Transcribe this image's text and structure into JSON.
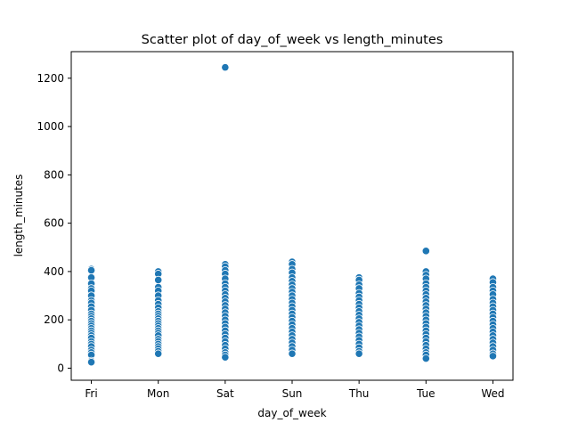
{
  "chart_data": {
    "type": "scatter",
    "title": "Scatter plot of day_of_week vs length_minutes",
    "xlabel": "day_of_week",
    "ylabel": "length_minutes",
    "categories": [
      "Fri",
      "Mon",
      "Sat",
      "Sun",
      "Thu",
      "Tue",
      "Wed"
    ],
    "ylim": [
      -50,
      1310
    ],
    "yticks": [
      0,
      200,
      400,
      600,
      800,
      1000,
      1200
    ],
    "grid": false,
    "legend": "none",
    "marker_color": "#1f77b4",
    "marker_edge_color": "#ffffff",
    "series": [
      {
        "values": [
          {
            "x": "Fri",
            "y": 410
          },
          {
            "x": "Fri",
            "y": 405
          },
          {
            "x": "Fri",
            "y": 375
          },
          {
            "x": "Fri",
            "y": 350
          },
          {
            "x": "Fri",
            "y": 330
          },
          {
            "x": "Fri",
            "y": 320
          },
          {
            "x": "Fri",
            "y": 300
          },
          {
            "x": "Fri",
            "y": 280
          },
          {
            "x": "Fri",
            "y": 270
          },
          {
            "x": "Fri",
            "y": 255
          },
          {
            "x": "Fri",
            "y": 240
          },
          {
            "x": "Fri",
            "y": 225
          },
          {
            "x": "Fri",
            "y": 215
          },
          {
            "x": "Fri",
            "y": 205
          },
          {
            "x": "Fri",
            "y": 195
          },
          {
            "x": "Fri",
            "y": 185
          },
          {
            "x": "Fri",
            "y": 175
          },
          {
            "x": "Fri",
            "y": 165
          },
          {
            "x": "Fri",
            "y": 155
          },
          {
            "x": "Fri",
            "y": 145
          },
          {
            "x": "Fri",
            "y": 135
          },
          {
            "x": "Fri",
            "y": 125
          },
          {
            "x": "Fri",
            "y": 110
          },
          {
            "x": "Fri",
            "y": 100
          },
          {
            "x": "Fri",
            "y": 90
          },
          {
            "x": "Fri",
            "y": 75
          },
          {
            "x": "Fri",
            "y": 65
          },
          {
            "x": "Fri",
            "y": 55
          },
          {
            "x": "Fri",
            "y": 30
          },
          {
            "x": "Fri",
            "y": 25
          },
          {
            "x": "Mon",
            "y": 400
          },
          {
            "x": "Mon",
            "y": 390
          },
          {
            "x": "Mon",
            "y": 365
          },
          {
            "x": "Mon",
            "y": 335
          },
          {
            "x": "Mon",
            "y": 320
          },
          {
            "x": "Mon",
            "y": 300
          },
          {
            "x": "Mon",
            "y": 280
          },
          {
            "x": "Mon",
            "y": 265
          },
          {
            "x": "Mon",
            "y": 250
          },
          {
            "x": "Mon",
            "y": 235
          },
          {
            "x": "Mon",
            "y": 225
          },
          {
            "x": "Mon",
            "y": 215
          },
          {
            "x": "Mon",
            "y": 205
          },
          {
            "x": "Mon",
            "y": 195
          },
          {
            "x": "Mon",
            "y": 185
          },
          {
            "x": "Mon",
            "y": 175
          },
          {
            "x": "Mon",
            "y": 165
          },
          {
            "x": "Mon",
            "y": 155
          },
          {
            "x": "Mon",
            "y": 145
          },
          {
            "x": "Mon",
            "y": 135
          },
          {
            "x": "Mon",
            "y": 120
          },
          {
            "x": "Mon",
            "y": 110
          },
          {
            "x": "Mon",
            "y": 100
          },
          {
            "x": "Mon",
            "y": 90
          },
          {
            "x": "Mon",
            "y": 80
          },
          {
            "x": "Mon",
            "y": 70
          },
          {
            "x": "Mon",
            "y": 60
          },
          {
            "x": "Sat",
            "y": 1245
          },
          {
            "x": "Sat",
            "y": 430
          },
          {
            "x": "Sat",
            "y": 420
          },
          {
            "x": "Sat",
            "y": 405
          },
          {
            "x": "Sat",
            "y": 390
          },
          {
            "x": "Sat",
            "y": 370
          },
          {
            "x": "Sat",
            "y": 350
          },
          {
            "x": "Sat",
            "y": 335
          },
          {
            "x": "Sat",
            "y": 320
          },
          {
            "x": "Sat",
            "y": 305
          },
          {
            "x": "Sat",
            "y": 290
          },
          {
            "x": "Sat",
            "y": 275
          },
          {
            "x": "Sat",
            "y": 260
          },
          {
            "x": "Sat",
            "y": 245
          },
          {
            "x": "Sat",
            "y": 230
          },
          {
            "x": "Sat",
            "y": 215
          },
          {
            "x": "Sat",
            "y": 200
          },
          {
            "x": "Sat",
            "y": 185
          },
          {
            "x": "Sat",
            "y": 170
          },
          {
            "x": "Sat",
            "y": 155
          },
          {
            "x": "Sat",
            "y": 140
          },
          {
            "x": "Sat",
            "y": 125
          },
          {
            "x": "Sat",
            "y": 110
          },
          {
            "x": "Sat",
            "y": 95
          },
          {
            "x": "Sat",
            "y": 80
          },
          {
            "x": "Sat",
            "y": 65
          },
          {
            "x": "Sat",
            "y": 55
          },
          {
            "x": "Sat",
            "y": 45
          },
          {
            "x": "Sun",
            "y": 440
          },
          {
            "x": "Sun",
            "y": 430
          },
          {
            "x": "Sun",
            "y": 410
          },
          {
            "x": "Sun",
            "y": 395
          },
          {
            "x": "Sun",
            "y": 375
          },
          {
            "x": "Sun",
            "y": 360
          },
          {
            "x": "Sun",
            "y": 345
          },
          {
            "x": "Sun",
            "y": 330
          },
          {
            "x": "Sun",
            "y": 315
          },
          {
            "x": "Sun",
            "y": 300
          },
          {
            "x": "Sun",
            "y": 285
          },
          {
            "x": "Sun",
            "y": 270
          },
          {
            "x": "Sun",
            "y": 255
          },
          {
            "x": "Sun",
            "y": 240
          },
          {
            "x": "Sun",
            "y": 225
          },
          {
            "x": "Sun",
            "y": 210
          },
          {
            "x": "Sun",
            "y": 195
          },
          {
            "x": "Sun",
            "y": 180
          },
          {
            "x": "Sun",
            "y": 165
          },
          {
            "x": "Sun",
            "y": 150
          },
          {
            "x": "Sun",
            "y": 135
          },
          {
            "x": "Sun",
            "y": 120
          },
          {
            "x": "Sun",
            "y": 105
          },
          {
            "x": "Sun",
            "y": 90
          },
          {
            "x": "Sun",
            "y": 75
          },
          {
            "x": "Sun",
            "y": 60
          },
          {
            "x": "Thu",
            "y": 375
          },
          {
            "x": "Thu",
            "y": 365
          },
          {
            "x": "Thu",
            "y": 345
          },
          {
            "x": "Thu",
            "y": 330
          },
          {
            "x": "Thu",
            "y": 310
          },
          {
            "x": "Thu",
            "y": 295
          },
          {
            "x": "Thu",
            "y": 280
          },
          {
            "x": "Thu",
            "y": 265
          },
          {
            "x": "Thu",
            "y": 250
          },
          {
            "x": "Thu",
            "y": 235
          },
          {
            "x": "Thu",
            "y": 220
          },
          {
            "x": "Thu",
            "y": 205
          },
          {
            "x": "Thu",
            "y": 190
          },
          {
            "x": "Thu",
            "y": 175
          },
          {
            "x": "Thu",
            "y": 160
          },
          {
            "x": "Thu",
            "y": 145
          },
          {
            "x": "Thu",
            "y": 130
          },
          {
            "x": "Thu",
            "y": 115
          },
          {
            "x": "Thu",
            "y": 100
          },
          {
            "x": "Thu",
            "y": 85
          },
          {
            "x": "Thu",
            "y": 70
          },
          {
            "x": "Thu",
            "y": 60
          },
          {
            "x": "Tue",
            "y": 485
          },
          {
            "x": "Tue",
            "y": 400
          },
          {
            "x": "Tue",
            "y": 385
          },
          {
            "x": "Tue",
            "y": 370
          },
          {
            "x": "Tue",
            "y": 350
          },
          {
            "x": "Tue",
            "y": 335
          },
          {
            "x": "Tue",
            "y": 320
          },
          {
            "x": "Tue",
            "y": 305
          },
          {
            "x": "Tue",
            "y": 290
          },
          {
            "x": "Tue",
            "y": 275
          },
          {
            "x": "Tue",
            "y": 260
          },
          {
            "x": "Tue",
            "y": 245
          },
          {
            "x": "Tue",
            "y": 230
          },
          {
            "x": "Tue",
            "y": 215
          },
          {
            "x": "Tue",
            "y": 200
          },
          {
            "x": "Tue",
            "y": 185
          },
          {
            "x": "Tue",
            "y": 170
          },
          {
            "x": "Tue",
            "y": 155
          },
          {
            "x": "Tue",
            "y": 140
          },
          {
            "x": "Tue",
            "y": 125
          },
          {
            "x": "Tue",
            "y": 110
          },
          {
            "x": "Tue",
            "y": 95
          },
          {
            "x": "Tue",
            "y": 80
          },
          {
            "x": "Tue",
            "y": 65
          },
          {
            "x": "Tue",
            "y": 55
          },
          {
            "x": "Tue",
            "y": 40
          },
          {
            "x": "Wed",
            "y": 370
          },
          {
            "x": "Wed",
            "y": 355
          },
          {
            "x": "Wed",
            "y": 335
          },
          {
            "x": "Wed",
            "y": 320
          },
          {
            "x": "Wed",
            "y": 305
          },
          {
            "x": "Wed",
            "y": 285
          },
          {
            "x": "Wed",
            "y": 270
          },
          {
            "x": "Wed",
            "y": 255
          },
          {
            "x": "Wed",
            "y": 240
          },
          {
            "x": "Wed",
            "y": 225
          },
          {
            "x": "Wed",
            "y": 210
          },
          {
            "x": "Wed",
            "y": 195
          },
          {
            "x": "Wed",
            "y": 180
          },
          {
            "x": "Wed",
            "y": 165
          },
          {
            "x": "Wed",
            "y": 150
          },
          {
            "x": "Wed",
            "y": 135
          },
          {
            "x": "Wed",
            "y": 120
          },
          {
            "x": "Wed",
            "y": 105
          },
          {
            "x": "Wed",
            "y": 90
          },
          {
            "x": "Wed",
            "y": 75
          },
          {
            "x": "Wed",
            "y": 60
          },
          {
            "x": "Wed",
            "y": 50
          }
        ]
      }
    ]
  }
}
